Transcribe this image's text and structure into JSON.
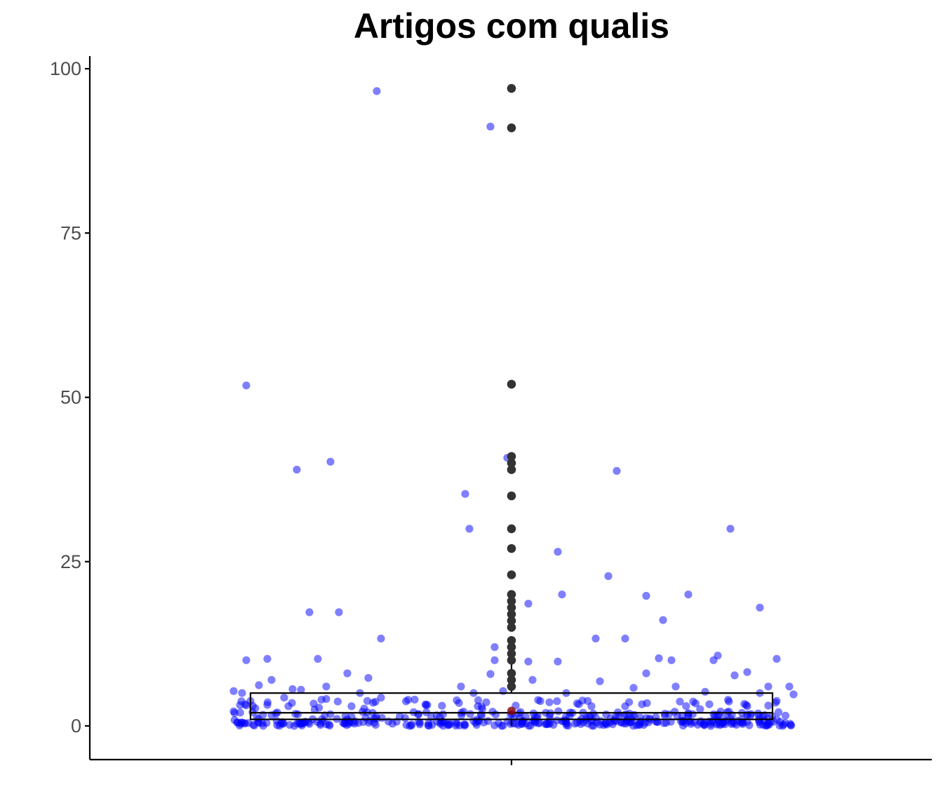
{
  "chart_data": {
    "type": "scatter",
    "subtype": "boxplot-with-jitter",
    "title": "Artigos com qualis",
    "xlabel": "",
    "ylabel": "",
    "ylim": [
      -5,
      100
    ],
    "yticks": [
      0,
      25,
      50,
      75,
      100
    ],
    "ytick_labels": [
      "0",
      "25",
      "50",
      "75",
      "100"
    ],
    "grid": false,
    "legend": "none",
    "colors": {
      "jitter": "#0000ff",
      "outlier": "#333333",
      "box": "#000000",
      "median_mark": "#8b0000"
    },
    "box": {
      "q1": 1,
      "median": 2,
      "q3": 5,
      "whisker_low": 0,
      "whisker_high": 10
    },
    "outliers": [
      97,
      91,
      52,
      41,
      40,
      39,
      35,
      30,
      27,
      23,
      20,
      19,
      18,
      17,
      16,
      15,
      13,
      12,
      11,
      10,
      8,
      7,
      6
    ],
    "jitter_points": [
      {
        "x": -0.63,
        "y": 51.8
      },
      {
        "x": -0.32,
        "y": 96.6
      },
      {
        "x": -0.05,
        "y": 91.2
      },
      {
        "x": -0.51,
        "y": 39.0
      },
      {
        "x": -0.43,
        "y": 40.2
      },
      {
        "x": -0.11,
        "y": 35.3
      },
      {
        "x": -0.1,
        "y": 30.0
      },
      {
        "x": -0.01,
        "y": 40.8
      },
      {
        "x": 0.25,
        "y": 38.8
      },
      {
        "x": 0.52,
        "y": 30.0
      },
      {
        "x": 0.11,
        "y": 26.5
      },
      {
        "x": 0.23,
        "y": 22.8
      },
      {
        "x": 0.12,
        "y": 20.0
      },
      {
        "x": 0.32,
        "y": 19.8
      },
      {
        "x": 0.42,
        "y": 20.0
      },
      {
        "x": 0.59,
        "y": 18.0
      },
      {
        "x": -0.48,
        "y": 17.3
      },
      {
        "x": -0.41,
        "y": 17.3
      },
      {
        "x": 0.04,
        "y": 18.6
      },
      {
        "x": 0.36,
        "y": 16.1
      },
      {
        "x": -0.31,
        "y": 13.3
      },
      {
        "x": 0.2,
        "y": 13.3
      },
      {
        "x": 0.27,
        "y": 13.3
      },
      {
        "x": -0.04,
        "y": 12.0
      },
      {
        "x": -0.63,
        "y": 10.0
      },
      {
        "x": -0.58,
        "y": 10.2
      },
      {
        "x": -0.46,
        "y": 10.2
      },
      {
        "x": 0.04,
        "y": 9.8
      },
      {
        "x": 0.11,
        "y": 9.8
      },
      {
        "x": 0.35,
        "y": 10.3
      },
      {
        "x": 0.38,
        "y": 10.0
      },
      {
        "x": 0.48,
        "y": 10.0
      },
      {
        "x": 0.49,
        "y": 10.7
      },
      {
        "x": 0.63,
        "y": 10.2
      },
      {
        "x": -0.04,
        "y": 10.0
      },
      {
        "x": -0.39,
        "y": 8.0
      },
      {
        "x": -0.34,
        "y": 7.3
      },
      {
        "x": 0.21,
        "y": 6.8
      },
      {
        "x": 0.32,
        "y": 8.0
      },
      {
        "x": 0.53,
        "y": 7.7
      },
      {
        "x": 0.56,
        "y": 8.2
      },
      {
        "x": -0.05,
        "y": 7.9
      },
      {
        "x": 0.05,
        "y": 7.0
      },
      {
        "x": -0.57,
        "y": 7.0
      },
      {
        "x": -0.6,
        "y": 6.2
      },
      {
        "x": -0.44,
        "y": 6.0
      },
      {
        "x": -0.12,
        "y": 6.0
      },
      {
        "x": 0.29,
        "y": 5.8
      },
      {
        "x": 0.39,
        "y": 6.0
      },
      {
        "x": 0.61,
        "y": 6.0
      },
      {
        "x": 0.66,
        "y": 6.0
      },
      {
        "x": -0.66,
        "y": 5.3
      },
      {
        "x": -0.64,
        "y": 5.0
      },
      {
        "x": -0.52,
        "y": 5.6
      },
      {
        "x": -0.5,
        "y": 5.5
      },
      {
        "x": -0.36,
        "y": 5.0
      },
      {
        "x": -0.09,
        "y": 5.0
      },
      {
        "x": -0.02,
        "y": 5.3
      },
      {
        "x": 0.13,
        "y": 5.0
      },
      {
        "x": 0.46,
        "y": 5.2
      },
      {
        "x": 0.59,
        "y": 5.0
      },
      {
        "x": 0.67,
        "y": 4.8
      },
      {
        "x": -0.54,
        "y": 4.3
      },
      {
        "x": -0.44,
        "y": 4.1
      },
      {
        "x": -0.31,
        "y": 4.3
      },
      {
        "x": -0.23,
        "y": 4.0
      },
      {
        "x": -0.13,
        "y": 3.9
      },
      {
        "x": -0.06,
        "y": 3.6
      },
      {
        "x": 0.09,
        "y": 3.6
      },
      {
        "x": 0.16,
        "y": 3.3
      },
      {
        "x": 0.31,
        "y": 3.3
      },
      {
        "x": 0.4,
        "y": 3.7
      },
      {
        "x": 0.47,
        "y": 3.3
      },
      {
        "x": 0.63,
        "y": 3.8
      },
      {
        "x": -0.62,
        "y": 3.8
      },
      {
        "x": -0.58,
        "y": 3.2
      },
      {
        "x": -0.53,
        "y": 3.0
      },
      {
        "x": -0.47,
        "y": 3.4
      },
      {
        "x": -0.38,
        "y": 3.0
      },
      {
        "x": -0.2,
        "y": 3.2
      },
      {
        "x": -0.08,
        "y": 3.0
      },
      {
        "x": 0.01,
        "y": 3.1
      },
      {
        "x": 0.19,
        "y": 3.0
      },
      {
        "x": 0.27,
        "y": 3.0
      },
      {
        "x": 0.56,
        "y": 3.0
      },
      {
        "x": 0.61,
        "y": 3.1
      }
    ],
    "cluster_points_count": 420
  }
}
